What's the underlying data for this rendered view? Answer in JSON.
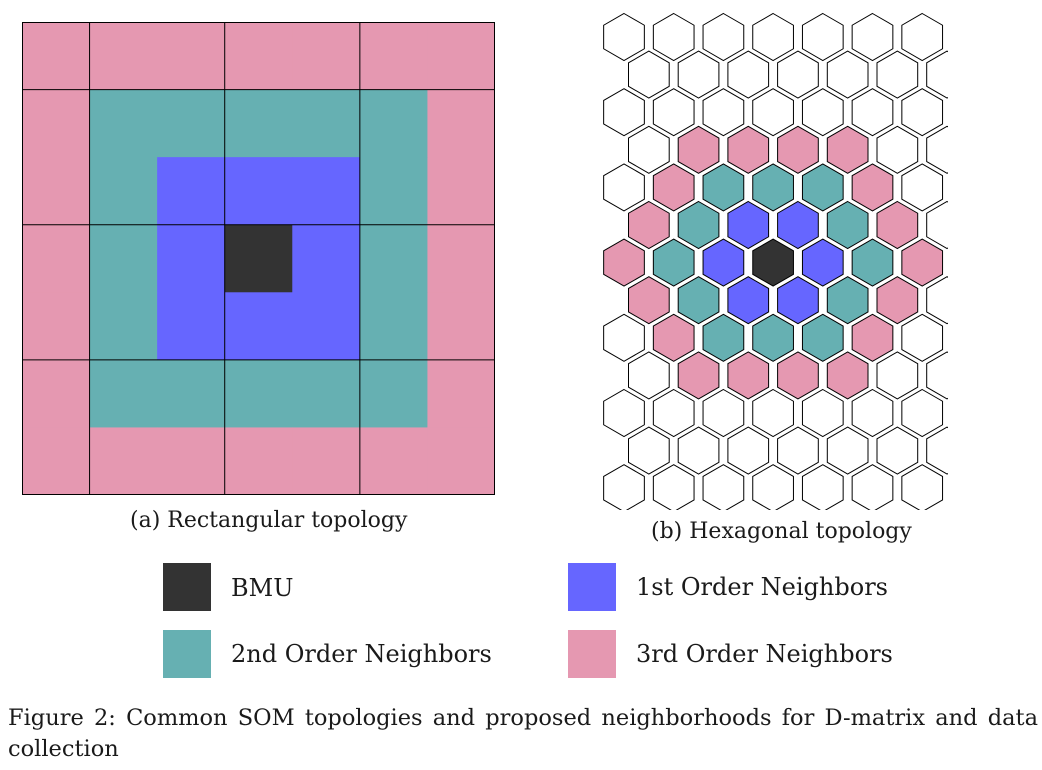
{
  "panels": {
    "rectangular": {
      "caption": "(a) Rectangular topology",
      "cell_rows": [
        [
          "3rd",
          "3rd",
          "3rd",
          "3rd",
          "3rd",
          "3rd",
          "3rd"
        ],
        [
          "3rd",
          "2nd",
          "2nd",
          "2nd",
          "2nd",
          "2nd",
          "3rd"
        ],
        [
          "3rd",
          "2nd",
          "1st",
          "1st",
          "1st",
          "2nd",
          "3rd"
        ],
        [
          "3rd",
          "2nd",
          "1st",
          "bmu",
          "1st",
          "2nd",
          "3rd"
        ],
        [
          "3rd",
          "2nd",
          "1st",
          "1st",
          "1st",
          "2nd",
          "3rd"
        ],
        [
          "3rd",
          "2nd",
          "2nd",
          "2nd",
          "2nd",
          "2nd",
          "3rd"
        ],
        [
          "3rd",
          "3rd",
          "3rd",
          "3rd",
          "3rd",
          "3rd",
          "3rd"
        ]
      ]
    },
    "hexagonal": {
      "caption": "(b) Hexagonal topology",
      "cell_rows": [
        [
          "none",
          "none",
          "none",
          "none",
          "none",
          "none",
          "none"
        ],
        [
          "none",
          "none",
          "none",
          "none",
          "none",
          "none",
          "none"
        ],
        [
          "none",
          "none",
          "none",
          "none",
          "none",
          "none",
          "none"
        ],
        [
          "none",
          "3rd",
          "3rd",
          "3rd",
          "3rd",
          "none",
          "none"
        ],
        [
          "none",
          "3rd",
          "2nd",
          "2nd",
          "2nd",
          "3rd",
          "none"
        ],
        [
          "3rd",
          "2nd",
          "1st",
          "1st",
          "2nd",
          "3rd",
          "none"
        ],
        [
          "3rd",
          "2nd",
          "1st",
          "bmu",
          "1st",
          "2nd",
          "3rd"
        ],
        [
          "3rd",
          "2nd",
          "1st",
          "1st",
          "2nd",
          "3rd",
          "none"
        ],
        [
          "none",
          "3rd",
          "2nd",
          "2nd",
          "2nd",
          "3rd",
          "none"
        ],
        [
          "none",
          "3rd",
          "3rd",
          "3rd",
          "3rd",
          "none",
          "none"
        ],
        [
          "none",
          "none",
          "none",
          "none",
          "none",
          "none",
          "none"
        ],
        [
          "none",
          "none",
          "none",
          "none",
          "none",
          "none",
          "none"
        ],
        [
          "none",
          "none",
          "none",
          "none",
          "none",
          "none",
          "none"
        ]
      ]
    }
  },
  "legend": [
    {
      "key": "bmu",
      "label": "BMU",
      "color": "#333333"
    },
    {
      "key": "1st",
      "label": "1st Order Neighbors",
      "color": "#6666ff"
    },
    {
      "key": "2nd",
      "label": "2nd Order Neighbors",
      "color": "#66b0b2"
    },
    {
      "key": "3rd",
      "label": "3rd Order Neighbors",
      "color": "#e598b1"
    }
  ],
  "figure_caption": {
    "label": "Figure 2:",
    "text": "Common SOM topologies and proposed neighborhoods for D-matrix and data collection"
  },
  "colors": {
    "none": "#ffffff",
    "stroke": "#000000"
  }
}
